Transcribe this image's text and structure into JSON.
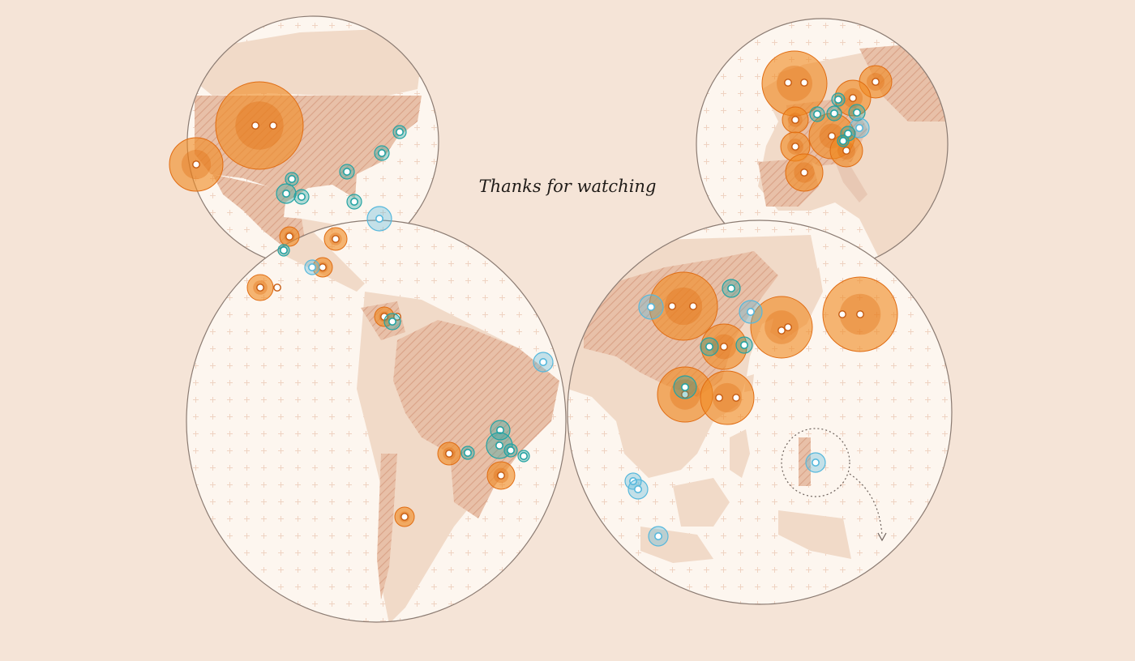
{
  "message": "Thanks for watching",
  "colors": {
    "background": "#f5e4d7",
    "ocean": "#fdf6ef",
    "land": "#f1dac8",
    "land_highlight": "#e6b9a0",
    "grid_plus": "#eed3c2",
    "globe_stroke": "#8b7b72",
    "orange": "#f08a24",
    "orange_dark": "#e06c12",
    "blue": "#56b8dc",
    "teal": "#23a3a3",
    "dot_fill": "#ffffff"
  },
  "globes": [
    {
      "id": "north-america",
      "zoom_region": false
    },
    {
      "id": "south-america",
      "zoom_region": false
    },
    {
      "id": "europe",
      "zoom_region": false
    },
    {
      "id": "asia",
      "zoom_region": true
    }
  ]
}
